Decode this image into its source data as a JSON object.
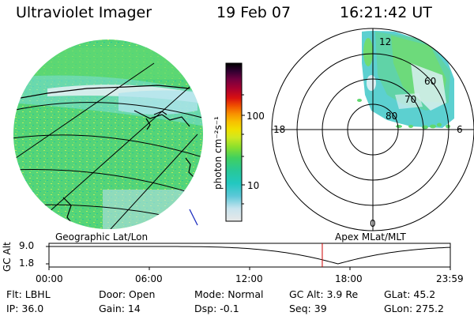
{
  "header": {
    "instrument": "Ultraviolet Imager",
    "date": "19 Feb 07",
    "time": "16:21:42 UT"
  },
  "colorbar": {
    "label": "photon cm⁻²s⁻¹",
    "ticks": [
      "100",
      "10"
    ],
    "scale": "log",
    "colors": [
      "#e8e8e8",
      "#c8e4ee",
      "#5cc8d8",
      "#22c8c0",
      "#28c898",
      "#40d060",
      "#8ce02c",
      "#d0e820",
      "#f0e000",
      "#f8c000",
      "#f89000",
      "#f05000",
      "#d81010",
      "#a80030",
      "#700040",
      "#300030",
      "#000000"
    ]
  },
  "polar_plot": {
    "lat_labels": [
      "80",
      "70",
      "60"
    ],
    "mlt_labels": {
      "top": "12",
      "left": "18",
      "right": "6",
      "bottom": "0"
    }
  },
  "timeline": {
    "left_title": "Geographic Lat/Lon",
    "right_title": "Apex MLat/MLT",
    "ylabel": "GC Alt",
    "y_ticks": [
      "9.0",
      "1.8"
    ],
    "x_ticks": [
      "00:00",
      "06:00",
      "12:00",
      "18:00",
      "23:59"
    ],
    "current_time_fraction": 0.681,
    "accent_color": "#cc0000"
  },
  "info": {
    "row1": {
      "filter": "Flt: LBHL",
      "door": "Door: Open",
      "mode": "Mode: Normal",
      "gc_alt": "GC Alt: 3.9 Re",
      "glat": "GLat:  45.2"
    },
    "row2": {
      "ip": "IP: 36.0",
      "gain": "Gain: 14",
      "dsp": "Dsp:    -0.1",
      "seq": "Seq: 39",
      "glon": "GLon: 275.2"
    }
  }
}
